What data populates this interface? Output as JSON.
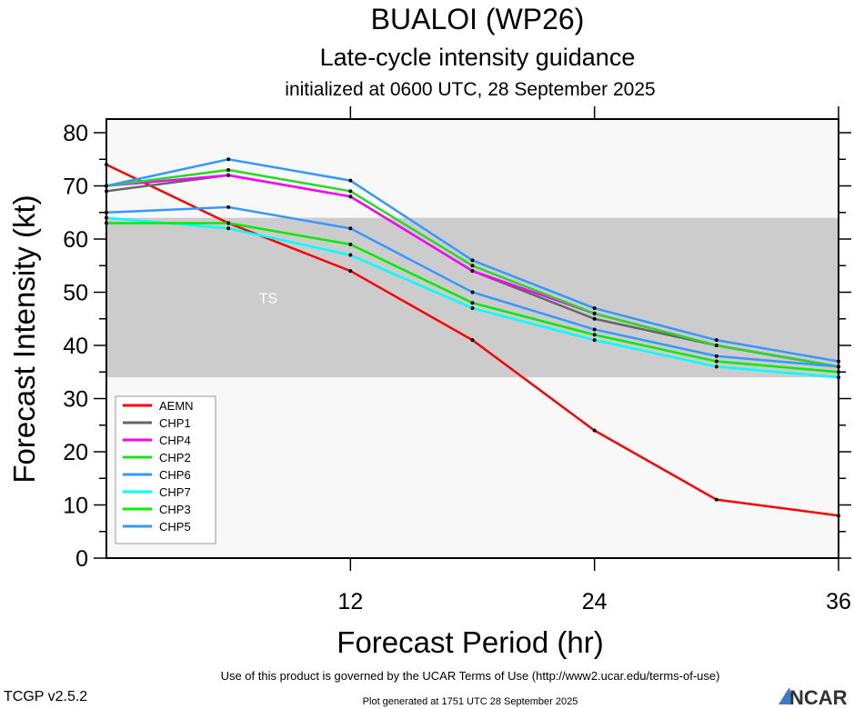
{
  "chart_data": {
    "type": "line",
    "title": "BUALOI (WP26)",
    "subtitle": "Late-cycle intensity guidance",
    "subtitle2": "initialized at 0600 UTC, 28 September 2025",
    "xlabel": "Forecast Period (hr)",
    "ylabel": "Forecast Intensity (kt)",
    "xlim": [
      0,
      36
    ],
    "ylim": [
      0,
      80
    ],
    "xticks": [
      12,
      24,
      36
    ],
    "yticks": [
      0,
      10,
      20,
      30,
      40,
      50,
      60,
      70,
      80
    ],
    "x": [
      0,
      6,
      12,
      18,
      24,
      30,
      36
    ],
    "band": {
      "label": "TS",
      "range": [
        34,
        64
      ],
      "color": "#cccccc"
    },
    "series": [
      {
        "name": "AEMN",
        "color": "#ff0000",
        "values": [
          74,
          63,
          54,
          41,
          24,
          11,
          8
        ]
      },
      {
        "name": "CHP1",
        "color": "#666666",
        "values": [
          69,
          72,
          68,
          54,
          45,
          40,
          36
        ]
      },
      {
        "name": "CHP4",
        "color": "#ff00ff",
        "values": [
          70,
          72,
          68,
          54,
          46,
          40,
          36
        ]
      },
      {
        "name": "CHP2",
        "color": "#22dd22",
        "values": [
          70,
          73,
          69,
          55,
          46,
          40,
          36
        ]
      },
      {
        "name": "CHP6",
        "color": "#3399ff",
        "values": [
          70,
          75,
          71,
          56,
          47,
          41,
          37
        ]
      },
      {
        "name": "CHP7",
        "color": "#00ffff",
        "values": [
          64,
          62,
          57,
          47,
          41,
          36,
          34
        ]
      },
      {
        "name": "CHP3",
        "color": "#00ee00",
        "values": [
          63,
          63,
          59,
          48,
          42,
          37,
          35
        ]
      },
      {
        "name": "CHP5",
        "color": "#3399ff",
        "values": [
          65,
          66,
          62,
          50,
          43,
          38,
          36
        ]
      }
    ]
  },
  "footer": {
    "version": "TCGP v2.5.2",
    "terms": "Use of this product is governed by the UCAR Terms of Use (http://www2.ucar.edu/terms-of-use)",
    "generated": "Plot generated at 1751 UTC   28 September 2025",
    "logo": "NCAR"
  }
}
